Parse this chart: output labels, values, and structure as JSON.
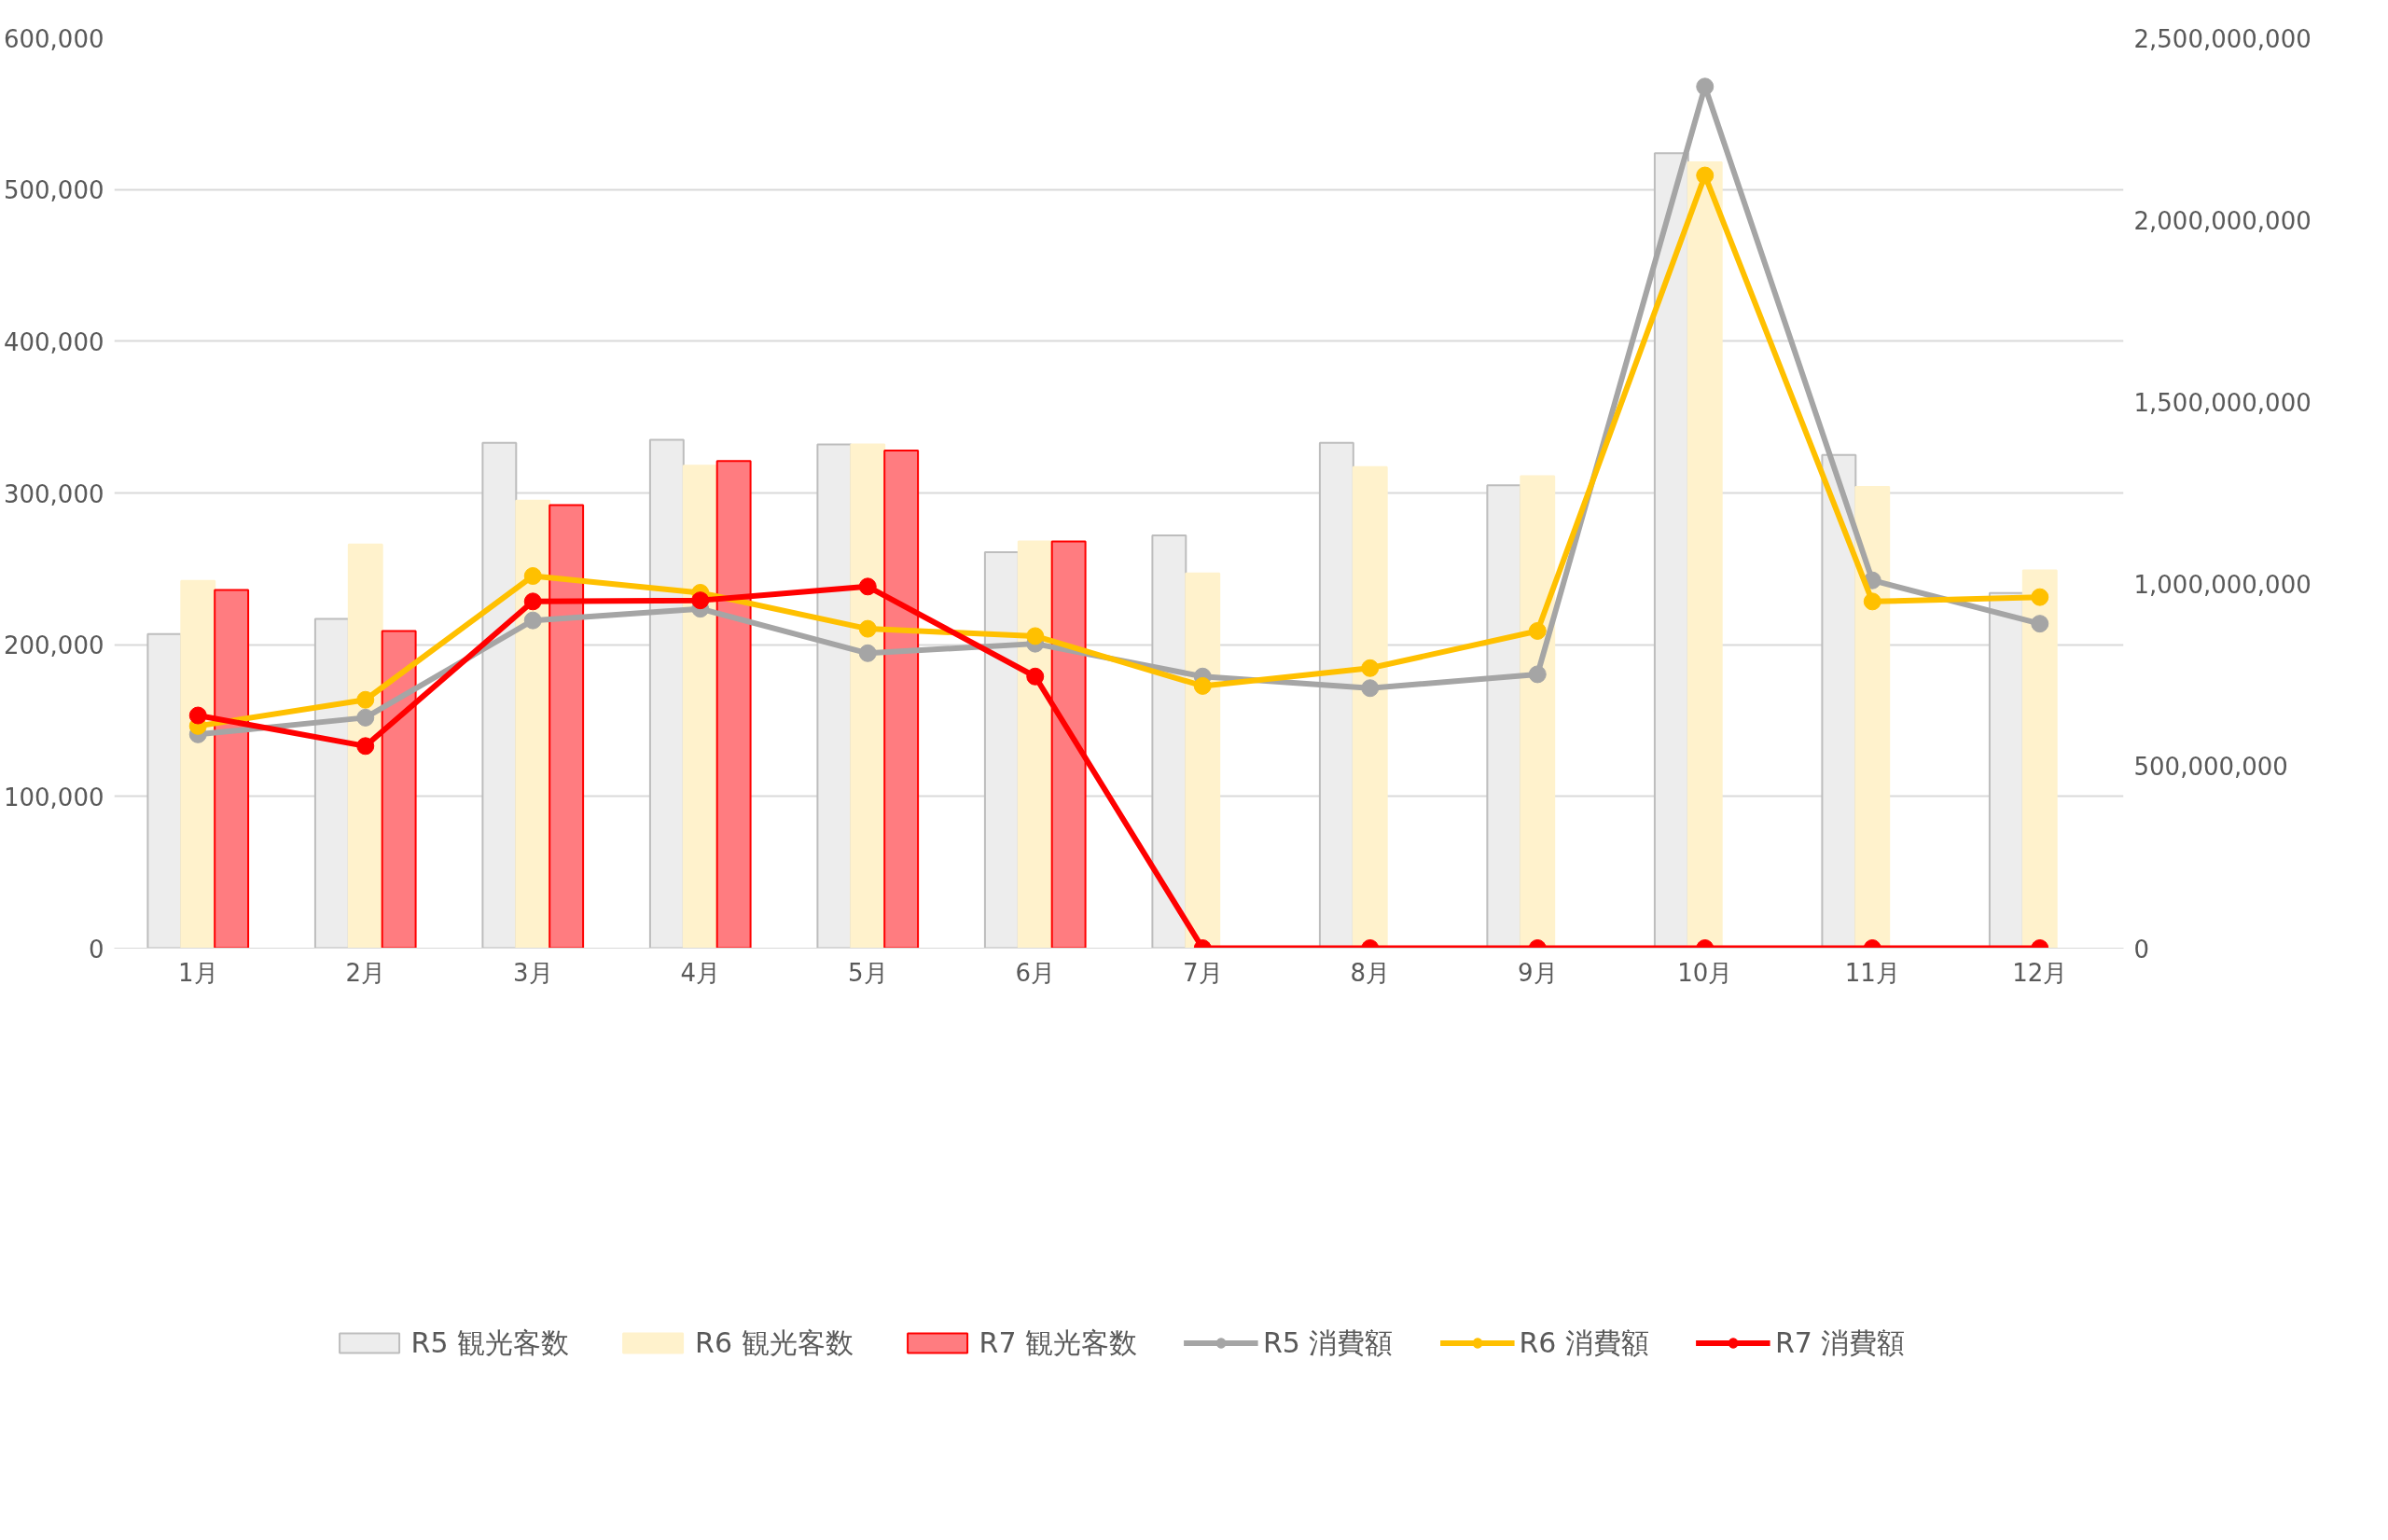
{
  "chart_data": {
    "type": "bar",
    "categories": [
      "1月",
      "2月",
      "3月",
      "4月",
      "5月",
      "6月",
      "7月",
      "8月",
      "9月",
      "10月",
      "11月",
      "12月"
    ],
    "series": [
      {
        "name": "R5 観光客数",
        "color": "#ededed",
        "values": [
          207000,
          217000,
          333000,
          335000,
          332000,
          261000,
          272000,
          333000,
          305000,
          524000,
          325000,
          234000
        ]
      },
      {
        "name": "R6 観光客数",
        "color": "#fff2cc",
        "values": [
          242000,
          266000,
          295000,
          318000,
          332000,
          268000,
          247000,
          317000,
          311000,
          518000,
          304000,
          249000
        ]
      },
      {
        "name": "R7 観光客数",
        "color": "#ff7c80",
        "values": [
          236000,
          209000,
          292000,
          321000,
          328000,
          268000,
          null,
          null,
          null,
          null,
          null,
          null
        ]
      },
      {
        "name": "R5 消費額",
        "type": "line",
        "axis": "y2",
        "color": "#a5a5a5",
        "values": [
          587000000,
          633000000,
          900000000,
          932000000,
          810000000,
          836000000,
          746000000,
          714000000,
          752000000,
          2366000000,
          1010000000,
          891000000
        ]
      },
      {
        "name": "R6 消費額",
        "type": "line",
        "axis": "y2",
        "color": "#ffc000",
        "values": [
          610000000,
          682000000,
          1022000000,
          976000000,
          877000000,
          857000000,
          720000000,
          769000000,
          871000000,
          2122000000,
          952000000,
          964000000
        ]
      },
      {
        "name": "R7 消費額",
        "type": "line",
        "axis": "y2",
        "color": "#ff0000",
        "values": [
          639000000,
          555000000,
          952000000,
          955000000,
          993000000,
          746000000,
          0,
          0,
          0,
          0,
          0,
          0
        ]
      }
    ],
    "ylim": [
      0,
      600000
    ],
    "yticks": [
      {
        "value": 0,
        "label": "0"
      },
      {
        "value": 100000,
        "label": "100,000"
      },
      {
        "value": 200000,
        "label": "200,000"
      },
      {
        "value": 300000,
        "label": "300,000"
      },
      {
        "value": 400000,
        "label": "400,000"
      },
      {
        "value": 500000,
        "label": "500,000"
      },
      {
        "value": 600000,
        "label": "600,000"
      }
    ],
    "y2lim": [
      0,
      2500000000
    ],
    "y2ticks": [
      {
        "value": 0,
        "label": "0"
      },
      {
        "value": 500000000,
        "label": "500,000,000"
      },
      {
        "value": 1000000000,
        "label": "1,000,000,000"
      },
      {
        "value": 1500000000,
        "label": "1,500,000,000"
      },
      {
        "value": 2000000000,
        "label": "2,000,000,000"
      },
      {
        "value": 2500000000,
        "label": "2,500,000,000"
      }
    ],
    "grid": "y",
    "legend": "bottom",
    "marker": "circle",
    "line_style": "solid"
  }
}
